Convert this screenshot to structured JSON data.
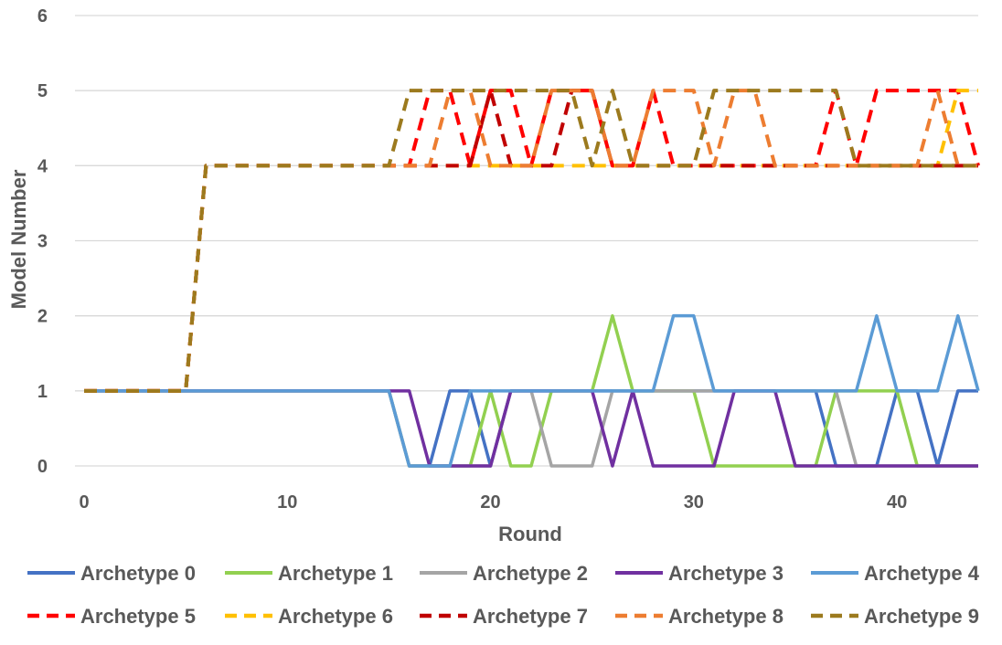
{
  "chart_data": {
    "type": "line",
    "title": "",
    "xlabel": "Round",
    "ylabel": "Model Number",
    "xlim": [
      0,
      44
    ],
    "ylim": [
      0,
      6
    ],
    "xticks": [
      0,
      10,
      20,
      30,
      40
    ],
    "yticks": [
      0,
      1,
      2,
      3,
      4,
      5,
      6
    ],
    "grid": "horizontal",
    "legend_position": "bottom",
    "series": [
      {
        "name": "Archetype 0",
        "color": "#4472C4",
        "dash": "solid",
        "values": [
          1,
          1,
          1,
          1,
          1,
          1,
          1,
          1,
          1,
          1,
          1,
          1,
          1,
          1,
          1,
          1,
          0,
          0,
          1,
          1,
          0,
          1,
          1,
          1,
          1,
          1,
          1,
          1,
          1,
          1,
          1,
          1,
          1,
          1,
          1,
          1,
          1,
          0,
          0,
          0,
          1,
          1,
          0,
          1,
          1
        ]
      },
      {
        "name": "Archetype 1",
        "color": "#92D050",
        "dash": "solid",
        "values": [
          1,
          1,
          1,
          1,
          1,
          1,
          1,
          1,
          1,
          1,
          1,
          1,
          1,
          1,
          1,
          1,
          0,
          0,
          0,
          0,
          1,
          0,
          0,
          1,
          1,
          1,
          2,
          1,
          1,
          1,
          1,
          0,
          0,
          0,
          0,
          0,
          0,
          1,
          1,
          1,
          1,
          0,
          0,
          0,
          0
        ]
      },
      {
        "name": "Archetype 2",
        "color": "#A5A5A5",
        "dash": "solid",
        "values": [
          1,
          1,
          1,
          1,
          1,
          1,
          1,
          1,
          1,
          1,
          1,
          1,
          1,
          1,
          1,
          1,
          0,
          0,
          0,
          0,
          0,
          1,
          1,
          0,
          0,
          0,
          1,
          1,
          1,
          1,
          1,
          1,
          1,
          1,
          1,
          1,
          1,
          1,
          0,
          0,
          0,
          0,
          0,
          0,
          0
        ]
      },
      {
        "name": "Archetype 3",
        "color": "#7030A0",
        "dash": "solid",
        "values": [
          1,
          1,
          1,
          1,
          1,
          1,
          1,
          1,
          1,
          1,
          1,
          1,
          1,
          1,
          1,
          1,
          1,
          0,
          0,
          0,
          0,
          1,
          1,
          1,
          1,
          1,
          0,
          1,
          0,
          0,
          0,
          0,
          1,
          1,
          1,
          0,
          0,
          0,
          0,
          0,
          0,
          0,
          0,
          0,
          0
        ]
      },
      {
        "name": "Archetype 4",
        "color": "#5B9BD5",
        "dash": "solid",
        "values": [
          1,
          1,
          1,
          1,
          1,
          1,
          1,
          1,
          1,
          1,
          1,
          1,
          1,
          1,
          1,
          1,
          0,
          0,
          0,
          1,
          1,
          1,
          1,
          1,
          1,
          1,
          1,
          1,
          1,
          2,
          2,
          1,
          1,
          1,
          1,
          1,
          1,
          1,
          1,
          2,
          1,
          1,
          1,
          2,
          1
        ]
      },
      {
        "name": "Archetype 5",
        "color": "#FF0000",
        "dash": "dashed",
        "values": [
          1,
          1,
          1,
          1,
          1,
          1,
          4,
          4,
          4,
          4,
          4,
          4,
          4,
          4,
          4,
          4,
          4,
          5,
          5,
          4,
          5,
          5,
          4,
          5,
          5,
          5,
          4,
          4,
          5,
          4,
          4,
          4,
          4,
          4,
          4,
          4,
          4,
          5,
          4,
          5,
          5,
          5,
          5,
          5,
          4
        ]
      },
      {
        "name": "Archetype 6",
        "color": "#FFC000",
        "dash": "dashed",
        "values": [
          1,
          1,
          1,
          1,
          1,
          1,
          4,
          4,
          4,
          4,
          4,
          4,
          4,
          4,
          4,
          4,
          4,
          4,
          4,
          4,
          4,
          4,
          4,
          4,
          4,
          4,
          4,
          4,
          4,
          4,
          4,
          4,
          4,
          4,
          4,
          4,
          4,
          4,
          4,
          4,
          4,
          4,
          4,
          5,
          5
        ]
      },
      {
        "name": "Archetype 7",
        "color": "#C00000",
        "dash": "dashed",
        "values": [
          1,
          1,
          1,
          1,
          1,
          1,
          4,
          4,
          4,
          4,
          4,
          4,
          4,
          4,
          4,
          4,
          4,
          4,
          4,
          4,
          5,
          4,
          4,
          4,
          5,
          5,
          4,
          4,
          4,
          4,
          4,
          4,
          4,
          4,
          4,
          4,
          4,
          4,
          4,
          4,
          4,
          4,
          4,
          4,
          4
        ]
      },
      {
        "name": "Archetype 8",
        "color": "#ED7D31",
        "dash": "dashed",
        "values": [
          1,
          1,
          1,
          1,
          1,
          1,
          4,
          4,
          4,
          4,
          4,
          4,
          4,
          4,
          4,
          4,
          4,
          4,
          5,
          5,
          4,
          4,
          4,
          5,
          5,
          5,
          4,
          4,
          5,
          5,
          5,
          4,
          5,
          5,
          4,
          4,
          4,
          4,
          4,
          4,
          4,
          4,
          5,
          4,
          4
        ]
      },
      {
        "name": "Archetype 9",
        "color": "#9C7A1E",
        "dash": "dashed",
        "values": [
          1,
          1,
          1,
          1,
          1,
          1,
          4,
          4,
          4,
          4,
          4,
          4,
          4,
          4,
          4,
          4,
          5,
          5,
          5,
          5,
          5,
          5,
          5,
          5,
          5,
          4,
          5,
          4,
          4,
          4,
          4,
          5,
          5,
          5,
          5,
          5,
          5,
          5,
          4,
          4,
          4,
          4,
          4,
          4,
          4
        ]
      }
    ]
  }
}
